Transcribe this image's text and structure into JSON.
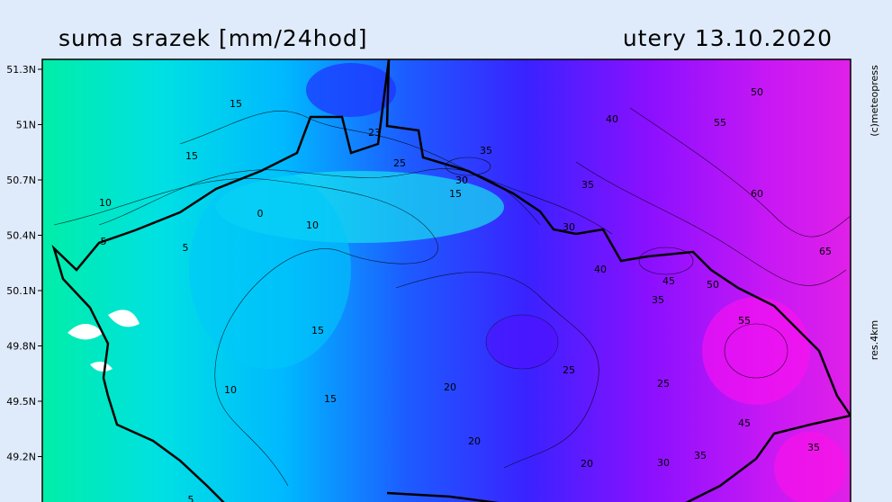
{
  "header": {
    "title": "suma srazek [mm/24hod]",
    "date": "utery 13.10.2020"
  },
  "side": {
    "copyright": "(c)meteopress",
    "resolution": "res.4km"
  },
  "map": {
    "lat_labels": [
      "51.3N",
      "51N",
      "50.7N",
      "50.4N",
      "50.1N",
      "49.8N",
      "49.5N",
      "49.2N"
    ],
    "contour_labels": [
      "15",
      "15",
      "10",
      "5",
      "0",
      "10",
      "5",
      "15",
      "10",
      "15",
      "20",
      "20",
      "25",
      "25",
      "20",
      "30",
      "35",
      "45",
      "35",
      "55",
      "50",
      "45",
      "35",
      "40",
      "30",
      "35",
      "35",
      "25",
      "15",
      "30",
      "23",
      "40",
      "50",
      "55",
      "60",
      "65",
      "5"
    ]
  }
}
